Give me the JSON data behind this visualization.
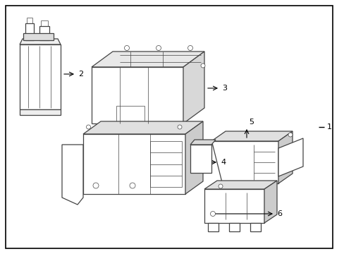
{
  "background_color": "#ffffff",
  "border_color": "#000000",
  "line_color": "#444444",
  "text_color": "#000000",
  "fig_width": 4.89,
  "fig_height": 3.6,
  "dpi": 100,
  "arrow_color": "#000000"
}
